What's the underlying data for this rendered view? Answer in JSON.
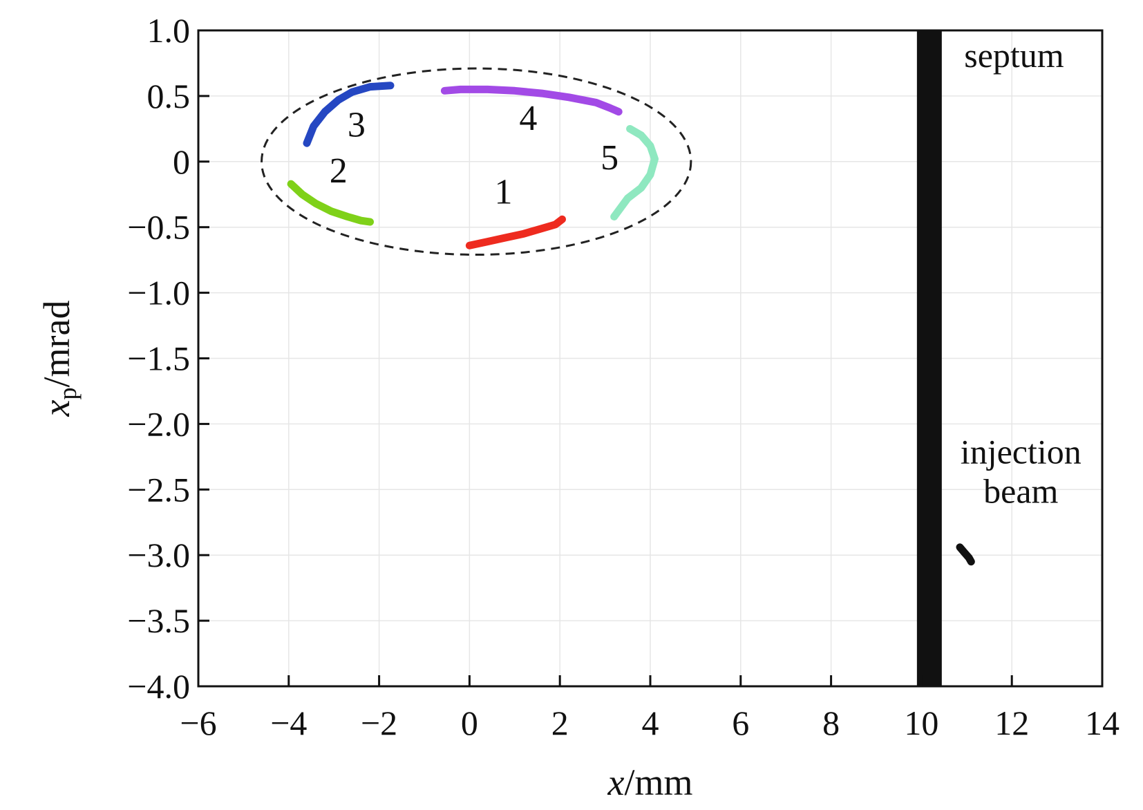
{
  "chart_data": {
    "type": "scatter",
    "title": "",
    "xlabel": {
      "var": "x",
      "unit": "/mm"
    },
    "ylabel": {
      "var": "x",
      "sub": "p",
      "unit": "/mrad"
    },
    "xlim": [
      -6,
      14
    ],
    "ylim": [
      -4.0,
      1.0
    ],
    "x_ticks": [
      -6,
      -4,
      -2,
      0,
      2,
      4,
      6,
      8,
      10,
      12,
      14
    ],
    "x_tick_labels": [
      "−6",
      "−4",
      "−2",
      "0",
      "2",
      "4",
      "6",
      "8",
      "10",
      "12",
      "14"
    ],
    "y_ticks": [
      1.0,
      0.5,
      0,
      -0.5,
      -1.0,
      -1.5,
      -2.0,
      -2.5,
      -3.0,
      -3.5,
      -4.0
    ],
    "y_tick_labels": [
      "1.0",
      "0.5",
      "0",
      "−0.5",
      "−1.0",
      "−1.5",
      "−2.0",
      "−2.5",
      "−3.0",
      "−3.5",
      "−4.0"
    ],
    "grid": true,
    "ellipse": {
      "style": "dashed",
      "color": "#222222",
      "center": [
        0.15,
        0.0
      ],
      "semi_x": 4.75,
      "semi_y": 0.71
    },
    "septum": {
      "label": "septum",
      "x_range": [
        9.9,
        10.45
      ],
      "color": "#111111"
    },
    "annotations": [
      {
        "text": "injection",
        "x": 12.2,
        "y": -2.3
      },
      {
        "text": "beam",
        "x": 12.2,
        "y": -2.6
      }
    ],
    "series": [
      {
        "label": "1",
        "color": "#ee2b1f",
        "points": [
          [
            0.0,
            -0.64
          ],
          [
            0.4,
            -0.61
          ],
          [
            0.8,
            -0.58
          ],
          [
            1.2,
            -0.55
          ],
          [
            1.6,
            -0.51
          ],
          [
            1.9,
            -0.48
          ],
          [
            2.05,
            -0.44
          ]
        ],
        "label_pos": [
          0.75,
          -0.32
        ]
      },
      {
        "label": "2",
        "color": "#7fd119",
        "points": [
          [
            -3.95,
            -0.17
          ],
          [
            -3.7,
            -0.25
          ],
          [
            -3.4,
            -0.32
          ],
          [
            -3.05,
            -0.38
          ],
          [
            -2.7,
            -0.42
          ],
          [
            -2.4,
            -0.45
          ],
          [
            -2.2,
            -0.46
          ]
        ],
        "label_pos": [
          -2.9,
          -0.16
        ]
      },
      {
        "label": "3",
        "color": "#2547c2",
        "points": [
          [
            -3.6,
            0.14
          ],
          [
            -3.45,
            0.27
          ],
          [
            -3.2,
            0.38
          ],
          [
            -2.9,
            0.47
          ],
          [
            -2.6,
            0.53
          ],
          [
            -2.2,
            0.57
          ],
          [
            -1.75,
            0.58
          ]
        ],
        "label_pos": [
          -2.5,
          0.19
        ]
      },
      {
        "label": "4",
        "color": "#a24ae6",
        "points": [
          [
            -0.55,
            0.54
          ],
          [
            -0.2,
            0.55
          ],
          [
            0.4,
            0.55
          ],
          [
            1.0,
            0.54
          ],
          [
            1.6,
            0.52
          ],
          [
            2.2,
            0.49
          ],
          [
            2.8,
            0.45
          ],
          [
            3.1,
            0.41
          ],
          [
            3.3,
            0.38
          ]
        ],
        "label_pos": [
          1.3,
          0.24
        ]
      },
      {
        "label": "5",
        "color": "#8fe8c0",
        "points": [
          [
            3.55,
            0.25
          ],
          [
            3.8,
            0.2
          ],
          [
            4.0,
            0.12
          ],
          [
            4.1,
            0.02
          ],
          [
            4.0,
            -0.1
          ],
          [
            3.8,
            -0.2
          ],
          [
            3.5,
            -0.28
          ],
          [
            3.2,
            -0.42
          ]
        ],
        "label_pos": [
          3.1,
          -0.06
        ]
      },
      {
        "label": "injection beam",
        "color": "#111111",
        "points": [
          [
            10.85,
            -2.94
          ],
          [
            10.95,
            -2.98
          ],
          [
            11.05,
            -3.02
          ],
          [
            11.1,
            -3.05
          ]
        ]
      }
    ]
  }
}
